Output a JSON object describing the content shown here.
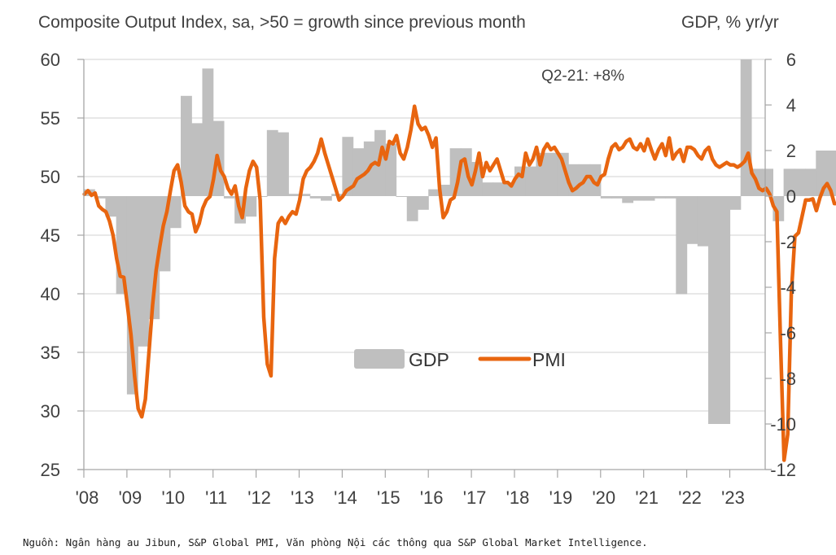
{
  "header": {
    "left_title": "Composite Output Index, sa, >50 = growth since previous month",
    "right_title": "GDP, % yr/yr"
  },
  "footer": {
    "source": "Nguồn: Ngân hàng au Jibun, S&P Global PMI, Văn phòng Nội các thông qua S&P Global Market Intelligence."
  },
  "colors": {
    "pmi": "#E8650F",
    "gdp": "#BFBFBF",
    "gridline": "#D9D9D9",
    "axis": "#A6A6A6",
    "text": "#404040"
  },
  "chart_data": {
    "type": "bar+line",
    "title": "Composite Output Index, sa, >50 = growth since previous month",
    "right_axis_title": "GDP, % yr/yr",
    "annotation": "Q2-21: +8%",
    "legend": [
      {
        "name": "GDP",
        "marker": "bar"
      },
      {
        "name": "PMI",
        "marker": "line"
      }
    ],
    "legend_position": "center",
    "grid": true,
    "x_tick_labels": [
      "'08",
      "'09",
      "'10",
      "'11",
      "'12",
      "'13",
      "'14",
      "'15",
      "'16",
      "'17",
      "'18",
      "'19",
      "'20",
      "'21",
      "'22",
      "'23"
    ],
    "x_range": [
      2008.0,
      2023.9
    ],
    "left_axis": {
      "label": "Composite Output Index",
      "ylim": [
        25,
        60
      ],
      "ticks": [
        25,
        30,
        35,
        40,
        45,
        50,
        55,
        60
      ]
    },
    "right_axis": {
      "label": "GDP, % yr/yr",
      "ylim": [
        -12,
        6
      ],
      "ticks": [
        -12,
        -10,
        -8,
        -6,
        -4,
        -2,
        0,
        2,
        4,
        6
      ]
    },
    "series": [
      {
        "name": "GDP",
        "type": "bar",
        "axis": "right",
        "frequency": "quarterly",
        "start": "2008Q1",
        "values": [
          0.3,
          -0.1,
          -0.9,
          -4.3,
          -8.7,
          -6.6,
          -5.4,
          -3.3,
          -1.4,
          4.4,
          3.2,
          5.6,
          3.3,
          -0.1,
          -1.2,
          -0.9,
          0.0,
          2.9,
          2.8,
          0.1,
          0.1,
          -0.1,
          -0.2,
          0.1,
          2.6,
          2.1,
          2.4,
          2.9,
          2.3,
          0.0,
          -1.1,
          -0.6,
          0.3,
          0.5,
          2.1,
          2.1,
          1.5,
          0.6,
          0.6,
          0.6,
          1.3,
          1.3,
          1.9,
          1.9,
          1.9,
          1.4,
          1.4,
          1.4,
          -0.1,
          -0.1,
          -0.3,
          -0.2,
          -0.2,
          -0.1,
          -0.1,
          -4.3,
          -2.1,
          -2.2,
          -10.0,
          -10.0,
          -0.6,
          8.0,
          1.2,
          1.2,
          -1.1,
          1.2,
          1.2,
          1.2,
          2.0,
          2.0,
          2.0,
          2.0,
          1.5,
          1.5,
          1.5,
          1.5,
          2.0,
          2.0,
          2.0,
          2.0
        ]
      },
      {
        "name": "PMI",
        "type": "line",
        "axis": "left",
        "frequency": "monthly",
        "start": "2008-01",
        "values": [
          48.5,
          48.8,
          48.4,
          48.6,
          47.5,
          47.2,
          47.0,
          46.2,
          45.0,
          43.0,
          41.5,
          41.4,
          39.0,
          36.5,
          33.0,
          30.2,
          29.5,
          31.0,
          35.0,
          39.0,
          42.0,
          44.0,
          45.8,
          47.0,
          48.8,
          50.5,
          51.0,
          49.5,
          47.5,
          47.0,
          46.8,
          45.3,
          46.0,
          47.3,
          48.0,
          48.3,
          49.8,
          51.8,
          50.5,
          50.0,
          49.0,
          48.5,
          49.2,
          47.5,
          46.5,
          49.0,
          50.5,
          51.3,
          50.8,
          48.0,
          38.0,
          34.0,
          33.0,
          43.0,
          46.0,
          46.5,
          46.0,
          46.6,
          47.0,
          46.8,
          48.0,
          49.8,
          50.5,
          50.8,
          51.3,
          52.0,
          53.2,
          52.0,
          51.0,
          50.0,
          49.0,
          48.0,
          48.3,
          48.8,
          49.0,
          49.2,
          49.8,
          50.0,
          50.2,
          50.5,
          51.0,
          51.2,
          51.0,
          52.5,
          51.5,
          53.0,
          52.8,
          53.5,
          52.0,
          51.5,
          52.5,
          54.0,
          56.0,
          54.5,
          54.0,
          54.2,
          53.5,
          52.5,
          53.3,
          49.0,
          46.5,
          47.0,
          48.0,
          48.2,
          49.5,
          51.3,
          51.5,
          50.0,
          49.3,
          50.5,
          52.0,
          50.0,
          51.2,
          50.5,
          51.0,
          51.5,
          50.5,
          49.5,
          49.5,
          49.2,
          49.8,
          50.2,
          50.0,
          52.0,
          51.0,
          51.5,
          52.5,
          51.0,
          52.3,
          52.8,
          52.3,
          52.5,
          52.0,
          51.5,
          50.5,
          49.5,
          48.8,
          49.0,
          49.3,
          49.5,
          50.0,
          50.0,
          49.5,
          49.3,
          50.0,
          50.2,
          51.5,
          52.5,
          52.8,
          52.3,
          52.5,
          53.0,
          53.2,
          52.5,
          52.3,
          52.8,
          52.2,
          53.2,
          52.3,
          51.5,
          52.3,
          52.8,
          51.8,
          53.3,
          51.5,
          52.0,
          52.3,
          51.3,
          52.5,
          52.5,
          52.3,
          51.8,
          51.5,
          52.2,
          52.5,
          51.5,
          51.0,
          50.8,
          51.0,
          51.2,
          51.0,
          51.0,
          50.8,
          51.0,
          51.3,
          52.0,
          50.3,
          49.8,
          49.0,
          48.8,
          49.0,
          48.5,
          47.5,
          47.0,
          36.0,
          25.8,
          28.0,
          40.0,
          44.9,
          45.2,
          46.6,
          48.0,
          48.0,
          48.1,
          47.1,
          48.2,
          49.0,
          49.4,
          48.8,
          47.7,
          47.7,
          45.5,
          47.9,
          50.7,
          53.3,
          52.5,
          48.3,
          45.8,
          50.3,
          51.1,
          52.3,
          53.0,
          50.2,
          49.4,
          51.0,
          51.8,
          48.9,
          49.0,
          49.7,
          50.7,
          51.3,
          52.9,
          54.3,
          52.1,
          52.2,
          52.6,
          52.1,
          49.9
        ]
      }
    ]
  }
}
